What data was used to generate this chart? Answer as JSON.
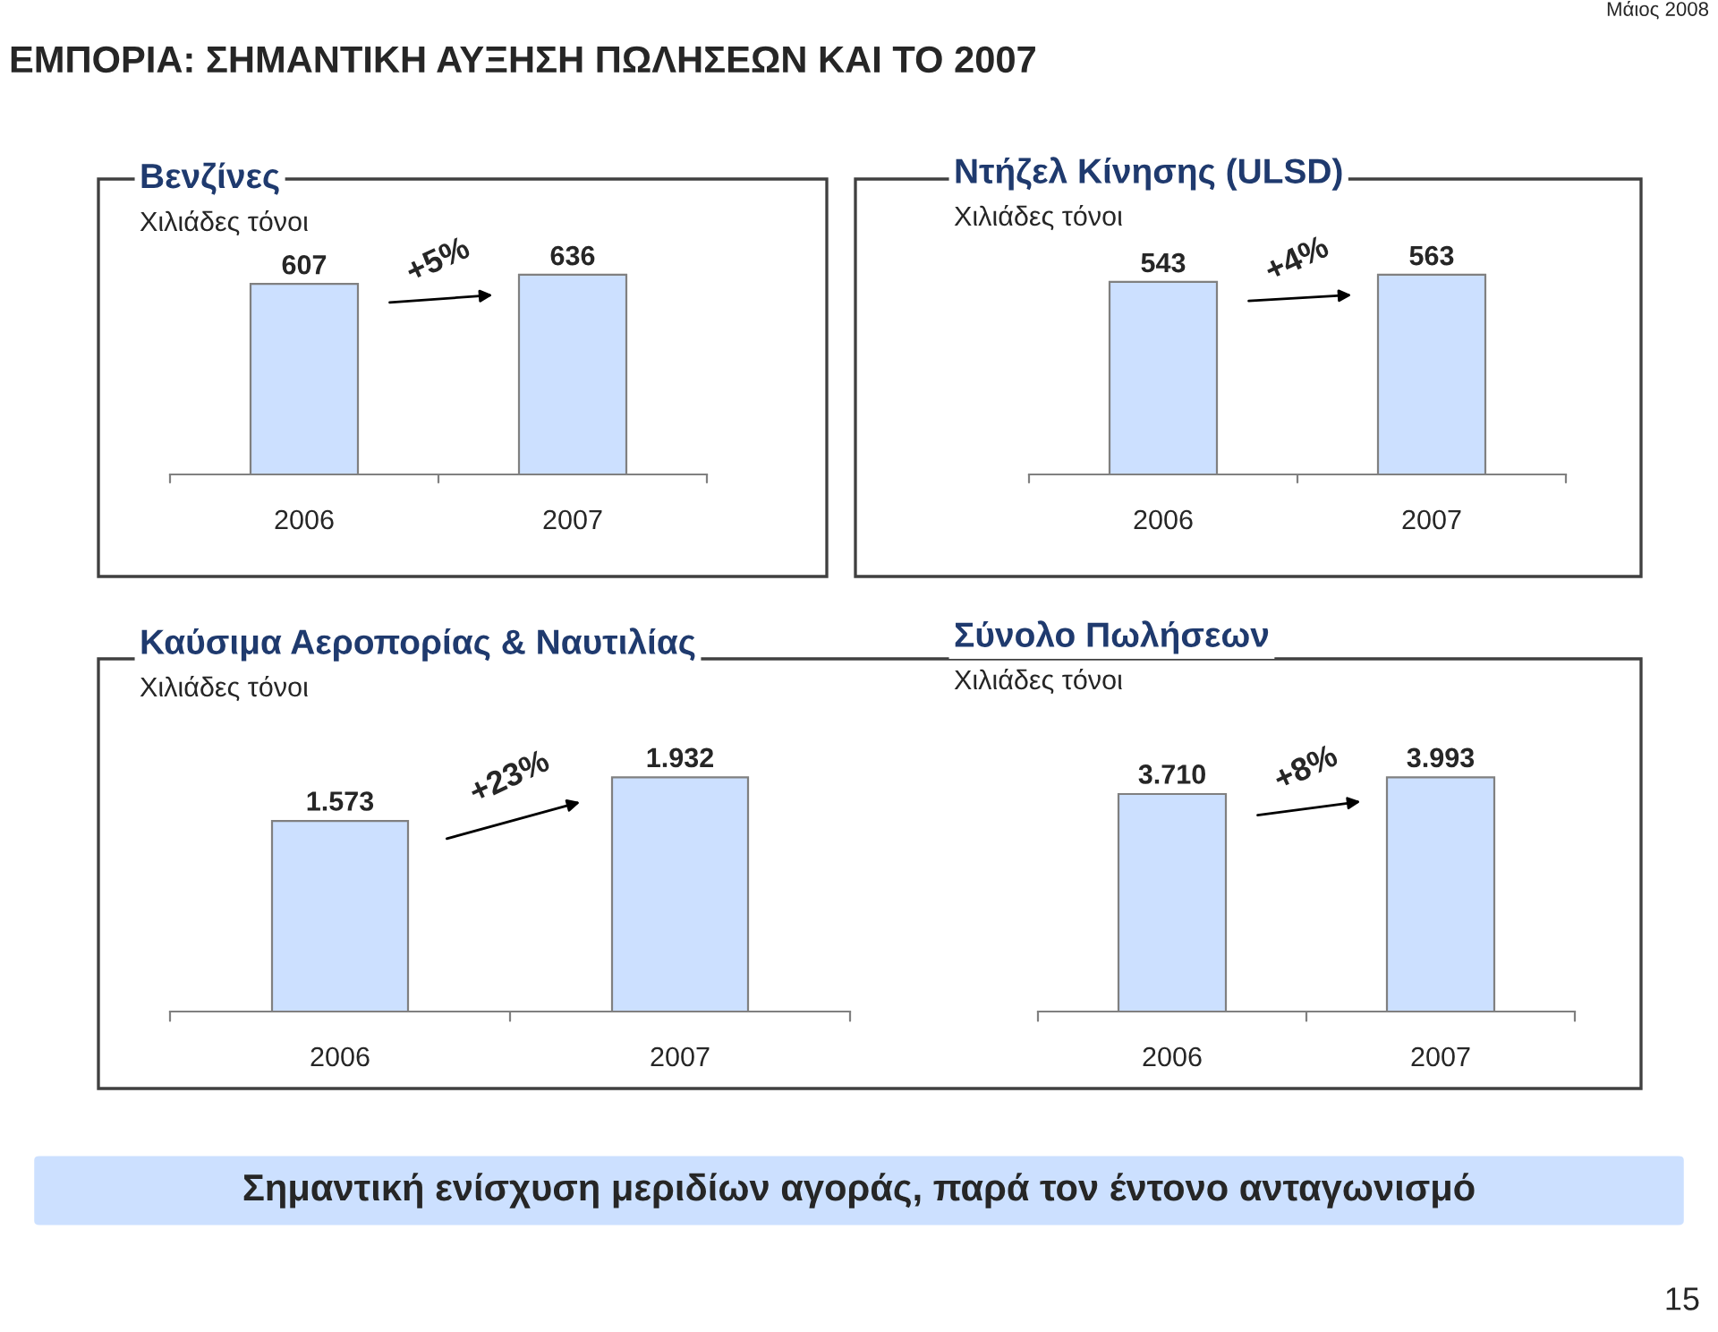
{
  "chart_data": [
    {
      "type": "bar",
      "title": "Βενζίνες",
      "subtitle": "Χιλιάδες τόνοι",
      "categories": [
        "2006",
        "2007"
      ],
      "values": [
        607,
        636
      ],
      "color": "#cce0ff",
      "data_labels": true,
      "grid": false,
      "annotations": [
        "+5%"
      ]
    },
    {
      "type": "bar",
      "title": "Ντήζελ Κίνησης (ULSD)",
      "subtitle": "Χιλιάδες τόνοι",
      "categories": [
        "2006",
        "2007"
      ],
      "values": [
        543,
        563
      ],
      "color": "#cce0ff",
      "data_labels": true,
      "grid": false,
      "annotations": [
        "+4%"
      ]
    },
    {
      "type": "bar",
      "title": "Καύσιμα Αεροπορίας & Ναυτιλίας",
      "subtitle": "Χιλιάδες τόνοι",
      "categories": [
        "2006",
        "2007"
      ],
      "values": [
        1573,
        1932
      ],
      "value_labels": [
        "1.573",
        "1.932"
      ],
      "color": "#cce0ff",
      "grid": false,
      "annotations": [
        "+23%"
      ]
    },
    {
      "type": "bar",
      "title": "Σύνολο Πωλήσεων",
      "subtitle": "Χιλιάδες τόνοι",
      "categories": [
        "2006",
        "2007"
      ],
      "values": [
        3710,
        3993
      ],
      "value_labels": [
        "3.710",
        "3.993"
      ],
      "color": "#cce0ff",
      "grid": false,
      "annotations": [
        "+8%"
      ]
    },
    {
      "type": "other",
      "title": "ΕΜΠΟΡΙΑ: ΣΗΜΑΝΤΙΚΗ ΑΥΞΗΣΗ ΠΩΛΗΣΕΩΝ ΚΑΙ ΤΟ 2007",
      "annotations": [
        "Μάιος 2008",
        "Σημαντική ενίσχυση μεριδίων αγοράς, παρά τον έντονο ανταγωνισμό",
        "15"
      ]
    }
  ]
}
